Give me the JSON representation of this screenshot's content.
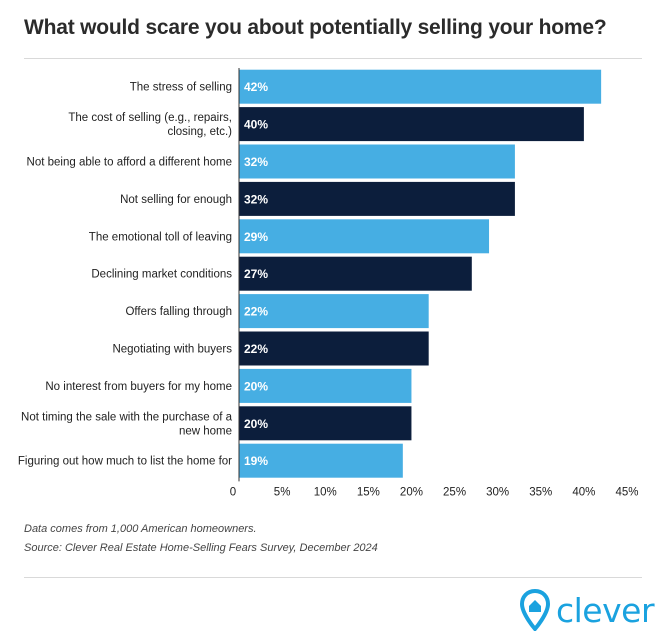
{
  "colors": {
    "light": "#46aee3",
    "dark": "#0c1e3c",
    "brand": "#1aa2df"
  },
  "chart_data": {
    "type": "bar",
    "orientation": "horizontal",
    "title": "What would scare you about potentially selling your home?",
    "categories": [
      "The stress of selling",
      "The cost of selling (e.g., repairs, closing, etc.)",
      "Not being able to afford a different home",
      "Not selling for enough",
      "The emotional toll of leaving",
      "Declining market conditions",
      "Offers falling through",
      "Negotiating with buyers",
      "No interest from buyers for my home",
      "Not timing the sale with the purchase of a new home",
      "Figuring out how much to list the home for"
    ],
    "values": [
      42,
      40,
      32,
      32,
      29,
      27,
      22,
      22,
      20,
      20,
      19
    ],
    "data_labels": [
      "42%",
      "40%",
      "32%",
      "32%",
      "29%",
      "27%",
      "22%",
      "22%",
      "20%",
      "20%",
      "19%"
    ],
    "xlim": [
      0,
      45
    ],
    "xticks": [
      0,
      5,
      10,
      15,
      20,
      25,
      30,
      35,
      40,
      45
    ],
    "xtick_labels": [
      "0",
      "5%",
      "10%",
      "15%",
      "20%",
      "25%",
      "30%",
      "35%",
      "40%",
      "45%"
    ],
    "grid": false,
    "legend": "none",
    "bar_colors": [
      "light",
      "dark",
      "light",
      "dark",
      "light",
      "dark",
      "light",
      "dark",
      "light",
      "dark",
      "light"
    ]
  },
  "footer": {
    "note1": "Data comes from 1,000 American homeowners.",
    "note2": "Source: Clever Real Estate Home-Selling Fears Survey, December 2024"
  },
  "logo": {
    "text": "clever",
    "icon": "house-pin-icon"
  }
}
